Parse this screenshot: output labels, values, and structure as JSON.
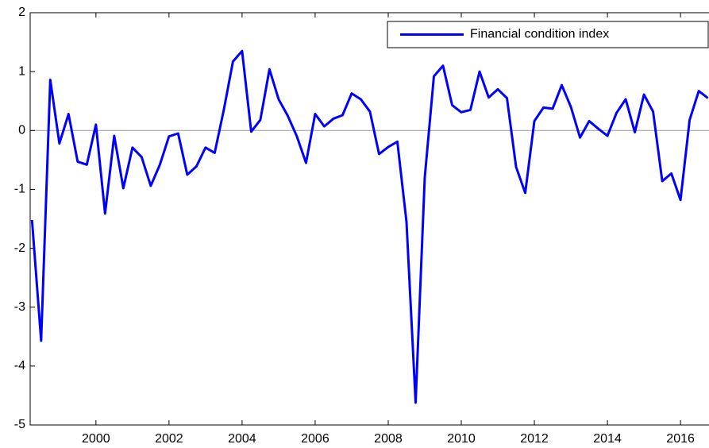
{
  "chart_data": {
    "type": "line",
    "legend": "upper right",
    "zero_line": true,
    "x": [
      1998.25,
      1998.5,
      1998.75,
      1999,
      1999.25,
      1999.5,
      1999.75,
      2000,
      2000.25,
      2000.5,
      2000.75,
      2001,
      2001.25,
      2001.5,
      2001.75,
      2002,
      2002.25,
      2002.5,
      2002.75,
      2003,
      2003.25,
      2003.5,
      2003.75,
      2004,
      2004.25,
      2004.5,
      2004.75,
      2005,
      2005.25,
      2005.5,
      2005.75,
      2006,
      2006.25,
      2006.5,
      2006.75,
      2007,
      2007.25,
      2007.5,
      2007.75,
      2008,
      2008.25,
      2008.5,
      2008.75,
      2009,
      2009.25,
      2009.5,
      2009.75,
      2010,
      2010.25,
      2010.5,
      2010.75,
      2011,
      2011.25,
      2011.5,
      2011.75,
      2012,
      2012.25,
      2012.5,
      2012.75,
      2013,
      2013.25,
      2013.5,
      2013.75,
      2014,
      2014.25,
      2014.5,
      2014.75,
      2015,
      2015.25,
      2015.5,
      2015.75,
      2016,
      2016.25,
      2016.5,
      2016.75
    ],
    "series": [
      {
        "name": "Financial condition index",
        "color": "#0000ff",
        "values": [
          -1.52,
          -3.57,
          0.86,
          -0.22,
          0.28,
          -0.53,
          -0.58,
          0.1,
          -1.41,
          -0.09,
          -0.98,
          -0.29,
          -0.45,
          -0.94,
          -0.58,
          -0.1,
          -0.05,
          -0.75,
          -0.61,
          -0.29,
          -0.38,
          0.35,
          1.17,
          1.35,
          -0.02,
          0.18,
          1.04,
          0.53,
          0.25,
          -0.1,
          -0.55,
          0.28,
          0.07,
          0.2,
          0.26,
          0.63,
          0.53,
          0.32,
          -0.4,
          -0.28,
          -0.19,
          -1.55,
          -4.62,
          -0.8,
          0.92,
          1.1,
          0.43,
          0.31,
          0.35,
          1.0,
          0.56,
          0.7,
          0.55,
          -0.62,
          -1.06,
          0.16,
          0.39,
          0.37,
          0.77,
          0.4,
          -0.12,
          0.16,
          0.03,
          -0.09,
          0.3,
          0.53,
          -0.03,
          0.61,
          0.32,
          -0.86,
          -0.73,
          -1.18,
          0.18,
          0.67,
          0.55
        ]
      }
    ],
    "xlim": [
      1998.2,
      2016.78
    ],
    "xticks": [
      2000,
      2002,
      2004,
      2006,
      2008,
      2010,
      2012,
      2014,
      2016
    ],
    "ylim": [
      -5,
      2
    ],
    "yticks": [
      -5,
      -4,
      -3,
      -2,
      -1,
      0,
      1,
      2
    ]
  }
}
